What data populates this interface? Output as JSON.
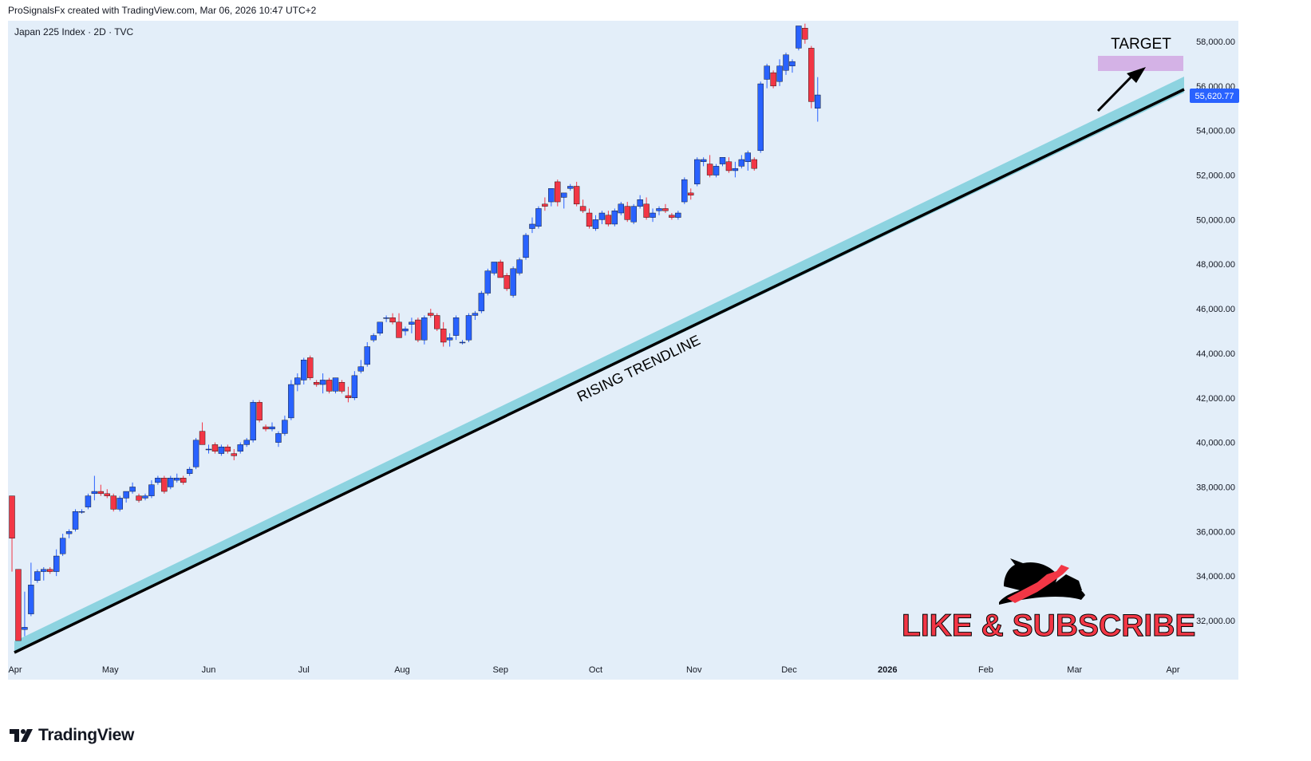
{
  "header": {
    "attribution": "ProSignalsFx created with TradingView.com, Mar 06, 2026 10:47 UTC+2"
  },
  "chart_meta": {
    "symbol_line": "Japan 225 Index · 2D · TVC"
  },
  "colors": {
    "background": "#e3eef9",
    "up": "#2962ff",
    "down": "#f23645",
    "trend_band": "#8dd3e0",
    "trend_line": "#000000",
    "target_zone": "#d4b2e6",
    "price_label": "#2962ff"
  },
  "chart_data": {
    "type": "candlestick",
    "title": "Japan 225 Index · 2D · TVC",
    "y_axis_ticks": [
      "58,000.00",
      "56,000.00",
      "54,000.00",
      "52,000.00",
      "50,000.00",
      "48,000.00",
      "46,000.00",
      "44,000.00",
      "42,000.00",
      "40,000.00",
      "38,000.00",
      "36,000.00",
      "34,000.00",
      "32,000.00"
    ],
    "y_tick_values": [
      58000,
      56000,
      54000,
      52000,
      50000,
      48000,
      46000,
      44000,
      42000,
      40000,
      38000,
      36000,
      34000,
      32000
    ],
    "x_axis_ticks": [
      "Apr",
      "May",
      "Jun",
      "Jul",
      "Aug",
      "Sep",
      "Oct",
      "Nov",
      "Dec",
      "2026",
      "Feb",
      "Mar",
      "Apr"
    ],
    "x_tick_dates": [
      "2025-04-01",
      "2025-05-01",
      "2025-06-01",
      "2025-07-01",
      "2025-08-01",
      "2025-09-01",
      "2025-10-01",
      "2025-11-01",
      "2025-12-01",
      "2026-01-01",
      "2026-02-01",
      "2026-03-01",
      "2026-04-01"
    ],
    "ylim": [
      30500,
      59500
    ],
    "last_price": "55,620.77",
    "last_price_value": 55620.77,
    "candles": [
      [
        "2025-03-31",
        37600,
        37600,
        34200,
        35700
      ],
      [
        "2025-04-02",
        34300,
        34300,
        31100,
        31100
      ],
      [
        "2025-04-04",
        31600,
        33300,
        31300,
        31700
      ],
      [
        "2025-04-06",
        32300,
        34600,
        32200,
        33600
      ],
      [
        "2025-04-08",
        33800,
        34300,
        33700,
        34200
      ],
      [
        "2025-04-10",
        34200,
        34400,
        33800,
        34300
      ],
      [
        "2025-04-12",
        34300,
        34400,
        34100,
        34200
      ],
      [
        "2025-04-14",
        34200,
        35200,
        34000,
        34900
      ],
      [
        "2025-04-16",
        35000,
        35900,
        34900,
        35700
      ],
      [
        "2025-04-18",
        35900,
        36100,
        35700,
        36000
      ],
      [
        "2025-04-20",
        36100,
        37000,
        36000,
        36900
      ],
      [
        "2025-04-22",
        36900,
        37000,
        36800,
        36900
      ],
      [
        "2025-04-24",
        37100,
        37700,
        37000,
        37600
      ],
      [
        "2025-04-26",
        37700,
        38500,
        37400,
        37800
      ],
      [
        "2025-04-28",
        37800,
        38100,
        37600,
        37700
      ],
      [
        "2025-04-30",
        37700,
        37900,
        37500,
        37600
      ],
      [
        "2025-05-02",
        37600,
        37700,
        36900,
        37000
      ],
      [
        "2025-05-04",
        37000,
        37600,
        36900,
        37500
      ],
      [
        "2025-05-06",
        37500,
        37800,
        37300,
        37800
      ],
      [
        "2025-05-08",
        37800,
        38200,
        37700,
        38000
      ],
      [
        "2025-05-10",
        37600,
        37700,
        37300,
        37400
      ],
      [
        "2025-05-12",
        37500,
        37700,
        37400,
        37600
      ],
      [
        "2025-05-14",
        37600,
        38300,
        37500,
        38100
      ],
      [
        "2025-05-16",
        38200,
        38500,
        38100,
        38400
      ],
      [
        "2025-05-18",
        38400,
        38500,
        37700,
        37800
      ],
      [
        "2025-05-20",
        38000,
        38500,
        37900,
        38400
      ],
      [
        "2025-05-22",
        38300,
        38600,
        38200,
        38400
      ],
      [
        "2025-05-24",
        38400,
        38500,
        38100,
        38200
      ],
      [
        "2025-05-26",
        38600,
        38900,
        38500,
        38800
      ],
      [
        "2025-05-28",
        38900,
        40200,
        38800,
        40100
      ],
      [
        "2025-05-30",
        40500,
        40900,
        39900,
        39900
      ],
      [
        "2025-06-01",
        39700,
        39900,
        39500,
        39700
      ],
      [
        "2025-06-03",
        39900,
        40000,
        39500,
        39600
      ],
      [
        "2025-06-05",
        39500,
        39900,
        39400,
        39800
      ],
      [
        "2025-06-07",
        39800,
        39900,
        39500,
        39600
      ],
      [
        "2025-06-09",
        39500,
        39700,
        39200,
        39400
      ],
      [
        "2025-06-11",
        39600,
        40000,
        39500,
        39900
      ],
      [
        "2025-06-13",
        39900,
        40200,
        39800,
        40100
      ],
      [
        "2025-06-15",
        40100,
        41900,
        40000,
        41800
      ],
      [
        "2025-06-17",
        41800,
        41900,
        40900,
        41000
      ],
      [
        "2025-06-19",
        40700,
        40800,
        40500,
        40600
      ],
      [
        "2025-06-21",
        40600,
        40900,
        40500,
        40700
      ],
      [
        "2025-06-23",
        40000,
        40500,
        39800,
        40400
      ],
      [
        "2025-06-25",
        40400,
        41200,
        40300,
        41000
      ],
      [
        "2025-06-27",
        41100,
        42800,
        41000,
        42600
      ],
      [
        "2025-06-29",
        42600,
        43100,
        42300,
        42900
      ],
      [
        "2025-07-01",
        42800,
        43800,
        42600,
        43700
      ],
      [
        "2025-07-03",
        43800,
        43900,
        42800,
        42900
      ],
      [
        "2025-07-05",
        42700,
        42800,
        42500,
        42600
      ],
      [
        "2025-07-07",
        42600,
        43100,
        42200,
        42800
      ],
      [
        "2025-07-09",
        42800,
        42900,
        42200,
        42300
      ],
      [
        "2025-07-11",
        42300,
        42900,
        42200,
        42900
      ],
      [
        "2025-07-13",
        42700,
        42800,
        42200,
        42300
      ],
      [
        "2025-07-15",
        42100,
        42500,
        41800,
        42000
      ],
      [
        "2025-07-17",
        42000,
        43200,
        41900,
        43000
      ],
      [
        "2025-07-19",
        43200,
        43700,
        43100,
        43400
      ],
      [
        "2025-07-21",
        43500,
        44500,
        43400,
        44300
      ],
      [
        "2025-07-23",
        44600,
        44900,
        44500,
        44800
      ],
      [
        "2025-07-25",
        44900,
        45400,
        44800,
        45400
      ],
      [
        "2025-07-27",
        45600,
        45700,
        45400,
        45600
      ],
      [
        "2025-07-29",
        45600,
        45800,
        45300,
        45400
      ],
      [
        "2025-07-31",
        45400,
        45800,
        44700,
        44700
      ],
      [
        "2025-08-02",
        45000,
        45200,
        44800,
        45100
      ],
      [
        "2025-08-04",
        45300,
        45600,
        44900,
        45400
      ],
      [
        "2025-08-06",
        45500,
        45600,
        44500,
        44600
      ],
      [
        "2025-08-08",
        44600,
        45700,
        44400,
        45600
      ],
      [
        "2025-08-10",
        45800,
        46000,
        45600,
        45700
      ],
      [
        "2025-08-12",
        45700,
        45800,
        45000,
        45100
      ],
      [
        "2025-08-14",
        45100,
        45400,
        44300,
        44500
      ],
      [
        "2025-08-16",
        44600,
        44900,
        44300,
        44700
      ],
      [
        "2025-08-18",
        44800,
        45700,
        44600,
        45600
      ],
      [
        "2025-08-20",
        44500,
        44600,
        44400,
        44500
      ],
      [
        "2025-08-22",
        44600,
        45800,
        44500,
        45700
      ],
      [
        "2025-08-24",
        45700,
        45900,
        45500,
        45800
      ],
      [
        "2025-08-26",
        45900,
        46800,
        45800,
        46700
      ],
      [
        "2025-08-28",
        46700,
        47800,
        46600,
        47700
      ],
      [
        "2025-08-30",
        47600,
        48100,
        47500,
        48100
      ],
      [
        "2025-09-01",
        48100,
        48200,
        47400,
        47400
      ],
      [
        "2025-09-03",
        47500,
        47600,
        46800,
        46900
      ],
      [
        "2025-09-05",
        46600,
        47900,
        46500,
        47800
      ],
      [
        "2025-09-07",
        47600,
        48300,
        47500,
        48200
      ],
      [
        "2025-09-09",
        48300,
        49400,
        48200,
        49300
      ],
      [
        "2025-09-11",
        49600,
        50100,
        49400,
        49800
      ],
      [
        "2025-09-13",
        49700,
        50600,
        49600,
        50500
      ],
      [
        "2025-09-15",
        50700,
        51000,
        50400,
        50600
      ],
      [
        "2025-09-17",
        50800,
        51400,
        50600,
        51400
      ],
      [
        "2025-09-19",
        51700,
        51800,
        50600,
        50800
      ],
      [
        "2025-09-21",
        51000,
        51200,
        50500,
        51200
      ],
      [
        "2025-09-23",
        51400,
        51600,
        51300,
        51500
      ],
      [
        "2025-09-25",
        51500,
        51700,
        50600,
        50700
      ],
      [
        "2025-09-27",
        50600,
        50900,
        50300,
        50400
      ],
      [
        "2025-09-29",
        50300,
        50500,
        49600,
        49700
      ],
      [
        "2025-10-01",
        49600,
        50200,
        49500,
        50000
      ],
      [
        "2025-10-03",
        50000,
        50400,
        49800,
        50300
      ],
      [
        "2025-10-05",
        50200,
        50400,
        49700,
        49800
      ],
      [
        "2025-10-07",
        49800,
        50500,
        49700,
        50400
      ],
      [
        "2025-10-09",
        50300,
        50800,
        50200,
        50700
      ],
      [
        "2025-10-11",
        50600,
        50800,
        49900,
        50000
      ],
      [
        "2025-10-13",
        49900,
        50700,
        49800,
        50600
      ],
      [
        "2025-10-15",
        50600,
        51100,
        50500,
        50900
      ],
      [
        "2025-10-17",
        50700,
        51000,
        50000,
        50100
      ],
      [
        "2025-10-19",
        50100,
        50500,
        49900,
        50300
      ],
      [
        "2025-10-21",
        50400,
        50600,
        50200,
        50500
      ],
      [
        "2025-10-23",
        50500,
        50700,
        50300,
        50400
      ],
      [
        "2025-10-25",
        50200,
        50300,
        50000,
        50100
      ],
      [
        "2025-10-27",
        50100,
        50400,
        50000,
        50300
      ],
      [
        "2025-10-29",
        50800,
        51900,
        50700,
        51800
      ],
      [
        "2025-10-31",
        51200,
        51400,
        50900,
        51100
      ],
      [
        "2025-11-02",
        51600,
        52800,
        51500,
        52700
      ],
      [
        "2025-11-04",
        52600,
        52800,
        52400,
        52700
      ],
      [
        "2025-11-06",
        52500,
        52900,
        51900,
        52000
      ],
      [
        "2025-11-08",
        52000,
        52500,
        51900,
        52400
      ],
      [
        "2025-11-10",
        52500,
        52800,
        52400,
        52800
      ],
      [
        "2025-11-12",
        52600,
        52800,
        52100,
        52200
      ],
      [
        "2025-11-14",
        52200,
        52600,
        51900,
        52300
      ],
      [
        "2025-11-16",
        52400,
        52900,
        52300,
        52700
      ],
      [
        "2025-11-18",
        52600,
        53100,
        52200,
        53000
      ],
      [
        "2025-11-20",
        52700,
        52800,
        52200,
        52300
      ],
      [
        "2025-11-22",
        53100,
        56200,
        53000,
        56100
      ],
      [
        "2025-11-24",
        56300,
        57000,
        55900,
        56900
      ],
      [
        "2025-11-26",
        56600,
        56700,
        55900,
        56000
      ],
      [
        "2025-11-28",
        56200,
        57200,
        56000,
        56900
      ],
      [
        "2025-11-30",
        56700,
        57500,
        56500,
        57400
      ],
      [
        "2025-12-02",
        56900,
        57200,
        56600,
        57100
      ],
      [
        "2025-12-04",
        57700,
        58700,
        57600,
        58700
      ],
      [
        "2025-12-06",
        58600,
        58800,
        57900,
        58100
      ],
      [
        "2025-12-08",
        57700,
        57800,
        55000,
        55300
      ],
      [
        "2025-12-10",
        55000,
        56400,
        54400,
        55600
      ]
    ],
    "annotations": [
      "RISING TRENDLINE",
      "TARGET",
      "LIKE & SUBSCRIBE"
    ]
  },
  "brand": {
    "name": "TradingView"
  }
}
